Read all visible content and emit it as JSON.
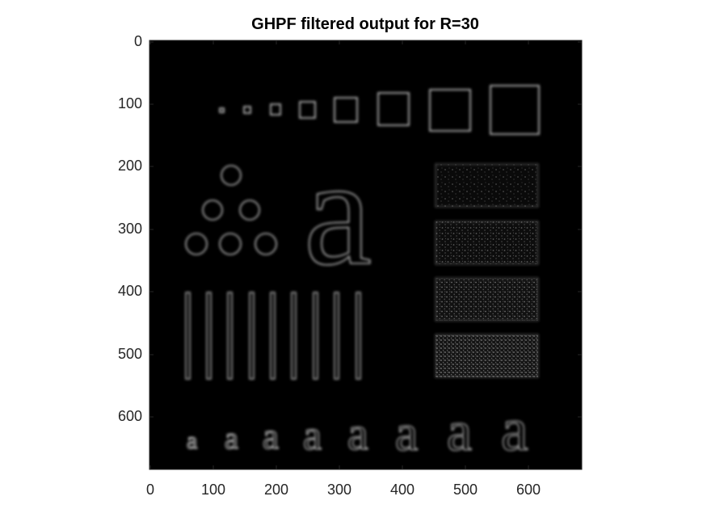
{
  "figure": {
    "title": "GHPF filtered output for R=30",
    "x_ticks": [
      "0",
      "100",
      "200",
      "300",
      "400",
      "500",
      "600"
    ],
    "y_ticks": [
      "0",
      "100",
      "200",
      "300",
      "400",
      "500",
      "600"
    ],
    "image_description_colors": {
      "background": "#000000",
      "edge_glow": "#bdbdbd",
      "axes": "#262626"
    }
  }
}
